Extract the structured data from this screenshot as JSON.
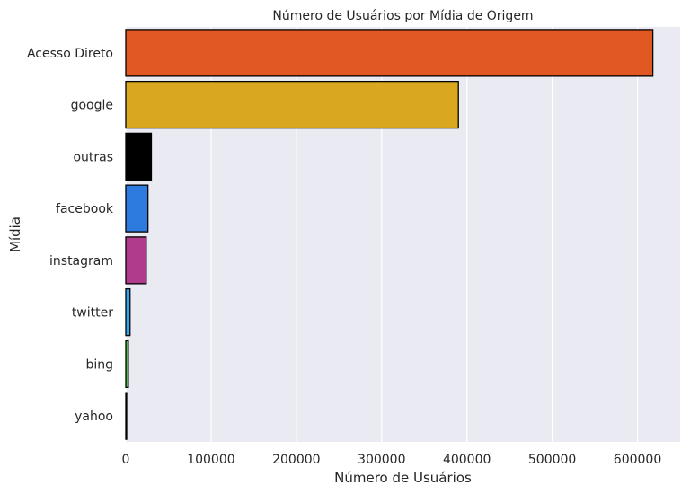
{
  "chart_data": {
    "type": "bar",
    "orientation": "horizontal",
    "title": "Número de Usuários por Mídia de Origem",
    "xlabel": "Número de Usuários",
    "ylabel": "Mídia",
    "xlim": [
      0,
      650000
    ],
    "xticks": [
      0,
      100000,
      200000,
      300000,
      400000,
      500000,
      600000
    ],
    "grid": true,
    "background_color": "#EAEAF2",
    "categories": [
      "Acesso Direto",
      "google",
      "outras",
      "facebook",
      "instagram",
      "twitter",
      "bing",
      "yahoo"
    ],
    "values": [
      618000,
      390000,
      30000,
      26000,
      24000,
      5000,
      3000,
      1000
    ],
    "colors": [
      "#E25822",
      "#D9A81F",
      "#000000",
      "#2E7BE0",
      "#B03A8C",
      "#2FA6EF",
      "#4CB84C",
      "#7A3FA0"
    ]
  }
}
